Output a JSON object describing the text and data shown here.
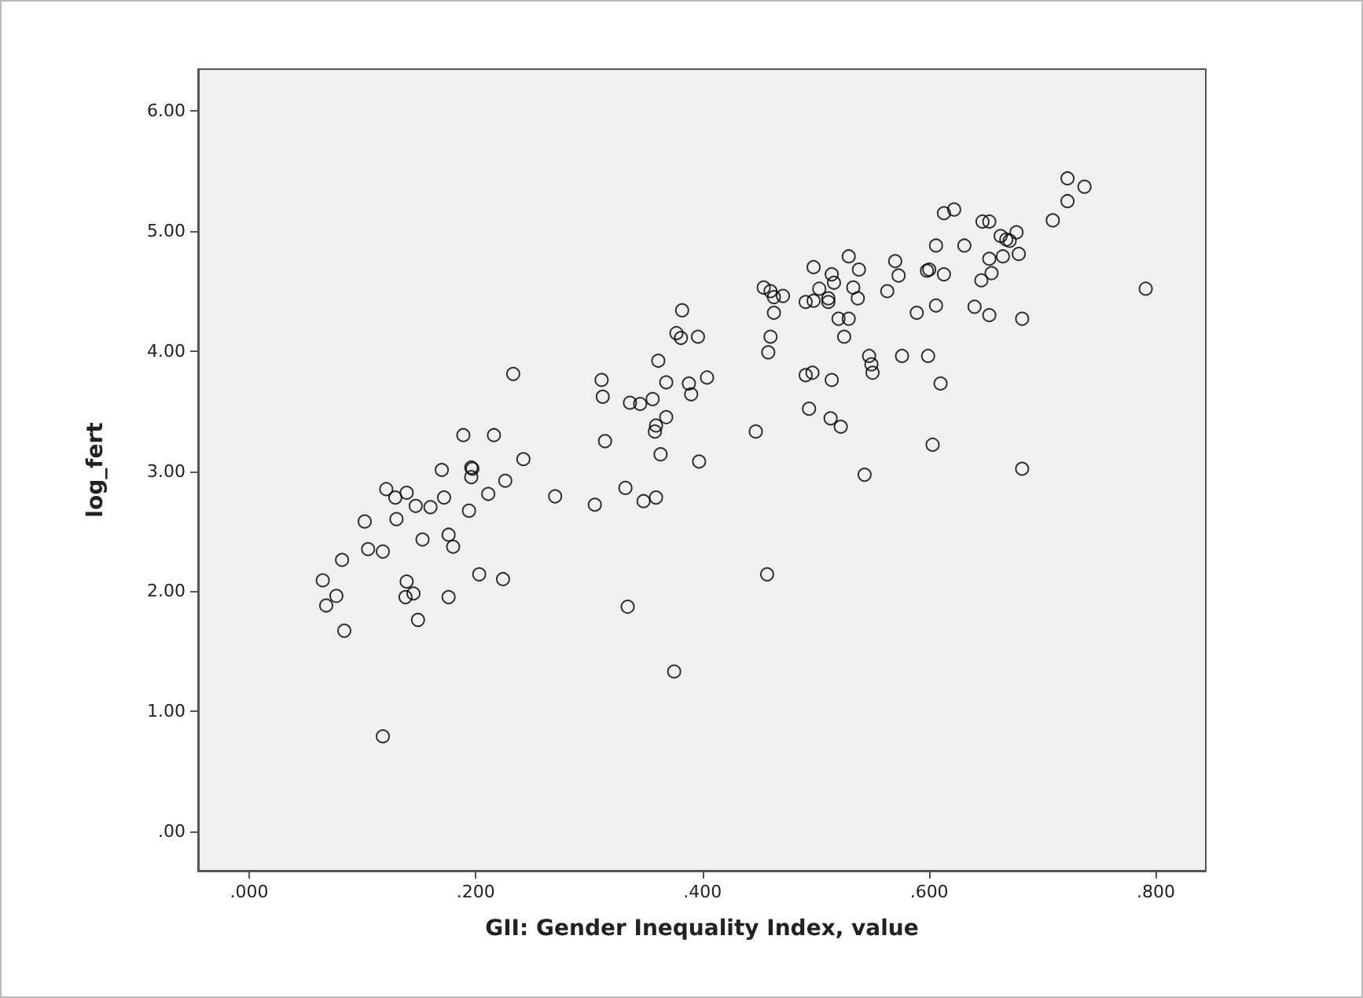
{
  "chart_data": {
    "type": "scatter",
    "xlabel": "GII: Gender Inequality Index, value",
    "ylabel": "log_fert",
    "color": "#000000",
    "marker": "circle",
    "xlim": [
      -0.045,
      0.844
    ],
    "ylim": [
      -0.33,
      6.35
    ],
    "xticks": [
      {
        "value": 0,
        "label": ".000"
      },
      {
        "value": 0.2,
        "label": ".200"
      },
      {
        "value": 0.4,
        "label": ".400"
      },
      {
        "value": 0.6,
        "label": ".600"
      },
      {
        "value": 0.8,
        "label": ".800"
      }
    ],
    "yticks": [
      {
        "value": 0,
        "label": ".00"
      },
      {
        "value": 1,
        "label": "1.00"
      },
      {
        "value": 2,
        "label": "2.00"
      },
      {
        "value": 3,
        "label": "3.00"
      },
      {
        "value": 4,
        "label": "4.00"
      },
      {
        "value": 5,
        "label": "5.00"
      },
      {
        "value": 6,
        "label": "6.00"
      }
    ],
    "x": [
      0.065,
      0.068,
      0.077,
      0.084,
      0.082,
      0.102,
      0.105,
      0.118,
      0.118,
      0.121,
      0.129,
      0.13,
      0.139,
      0.139,
      0.138,
      0.145,
      0.147,
      0.149,
      0.153,
      0.16,
      0.17,
      0.172,
      0.176,
      0.176,
      0.18,
      0.189,
      0.194,
      0.196,
      0.197,
      0.196,
      0.203,
      0.211,
      0.216,
      0.224,
      0.226,
      0.233,
      0.242,
      0.27,
      0.305,
      0.311,
      0.312,
      0.314,
      0.332,
      0.334,
      0.336,
      0.345,
      0.348,
      0.356,
      0.359,
      0.358,
      0.359,
      0.361,
      0.363,
      0.368,
      0.368,
      0.375,
      0.377,
      0.382,
      0.381,
      0.388,
      0.39,
      0.396,
      0.397,
      0.404,
      0.447,
      0.454,
      0.458,
      0.457,
      0.46,
      0.46,
      0.463,
      0.463,
      0.471,
      0.491,
      0.494,
      0.491,
      0.497,
      0.498,
      0.498,
      0.503,
      0.511,
      0.511,
      0.514,
      0.514,
      0.513,
      0.516,
      0.52,
      0.522,
      0.525,
      0.529,
      0.529,
      0.533,
      0.537,
      0.538,
      0.543,
      0.547,
      0.549,
      0.55,
      0.563,
      0.57,
      0.573,
      0.576,
      0.589,
      0.599,
      0.598,
      0.6,
      0.603,
      0.606,
      0.606,
      0.61,
      0.613,
      0.613,
      0.622,
      0.631,
      0.64,
      0.646,
      0.647,
      0.653,
      0.653,
      0.653,
      0.655,
      0.663,
      0.665,
      0.668,
      0.671,
      0.677,
      0.679,
      0.682,
      0.682,
      0.709,
      0.722,
      0.722,
      0.737,
      0.791
    ],
    "values": [
      2.09,
      1.88,
      1.96,
      1.67,
      2.26,
      2.58,
      2.35,
      2.33,
      0.79,
      2.85,
      2.78,
      2.6,
      2.82,
      2.08,
      1.95,
      1.98,
      2.71,
      1.76,
      2.43,
      2.7,
      3.01,
      2.78,
      2.47,
      1.95,
      2.37,
      3.3,
      2.67,
      3.03,
      3.02,
      2.95,
      2.14,
      2.81,
      3.3,
      2.1,
      2.92,
      3.81,
      3.1,
      2.79,
      2.72,
      3.76,
      3.62,
      3.25,
      2.86,
      1.87,
      3.57,
      3.56,
      2.75,
      3.6,
      2.78,
      3.33,
      3.38,
      3.92,
      3.14,
      3.45,
      3.74,
      1.33,
      4.15,
      4.34,
      4.11,
      3.73,
      3.64,
      4.12,
      3.08,
      3.78,
      3.33,
      4.53,
      3.99,
      2.14,
      4.12,
      4.5,
      4.45,
      4.32,
      4.46,
      3.8,
      3.52,
      4.41,
      3.82,
      4.7,
      4.42,
      4.52,
      4.44,
      4.41,
      4.64,
      3.76,
      3.44,
      4.57,
      4.27,
      3.37,
      4.12,
      4.79,
      4.27,
      4.53,
      4.44,
      4.68,
      2.97,
      3.96,
      3.89,
      3.82,
      4.5,
      4.75,
      4.63,
      3.96,
      4.32,
      3.96,
      4.67,
      4.68,
      3.22,
      4.38,
      4.88,
      3.73,
      4.64,
      5.15,
      5.18,
      4.88,
      4.37,
      4.59,
      5.08,
      5.08,
      4.77,
      4.3,
      4.65,
      4.96,
      4.79,
      4.93,
      4.92,
      4.99,
      4.81,
      4.27,
      3.02,
      5.09,
      5.44,
      5.25,
      5.37,
      4.52
    ]
  }
}
